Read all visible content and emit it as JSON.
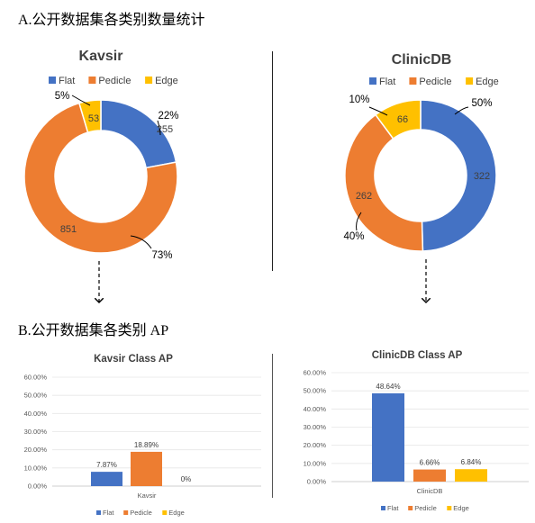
{
  "section_a_title": "A.公开数据集各类别数量统计",
  "section_b_title": "B.公开数据集各类别 AP",
  "colors": {
    "Flat": "#4472C4",
    "Pedicle": "#ED7D31",
    "Edge": "#FFC000"
  },
  "chart_data": [
    {
      "type": "pie",
      "title": "Kavsir",
      "legend": [
        "Flat",
        "Pedicle",
        "Edge"
      ],
      "legend_position": "top",
      "slices": [
        {
          "name": "Flat",
          "value": 255,
          "label": "255",
          "percent": "22%"
        },
        {
          "name": "Pedicle",
          "value": 851,
          "label": "851",
          "percent": "73%"
        },
        {
          "name": "Edge",
          "value": 53,
          "label": "53",
          "percent": "5%"
        }
      ]
    },
    {
      "type": "pie",
      "title": "ClinicDB",
      "legend": [
        "Flat",
        "Pedicle",
        "Edge"
      ],
      "legend_position": "top",
      "slices": [
        {
          "name": "Flat",
          "value": 322,
          "label": "322",
          "percent": "50%"
        },
        {
          "name": "Pedicle",
          "value": 262,
          "label": "262",
          "percent": "40%"
        },
        {
          "name": "Edge",
          "value": 66,
          "label": "66",
          "percent": "10%"
        }
      ]
    },
    {
      "type": "bar",
      "title": "Kavsir Class AP",
      "categories": [
        "Kavsir"
      ],
      "series": [
        {
          "name": "Flat",
          "values": [
            7.87
          ],
          "label": "7.87%"
        },
        {
          "name": "Pedicle",
          "values": [
            18.89
          ],
          "label": "18.89%"
        },
        {
          "name": "Edge",
          "values": [
            0
          ],
          "label": "0%"
        }
      ],
      "ylim": [
        0,
        60
      ],
      "yticks": [
        "0.00%",
        "10.00%",
        "20.00%",
        "30.00%",
        "40.00%",
        "50.00%",
        "60.00%"
      ],
      "legend_position": "bottom"
    },
    {
      "type": "bar",
      "title": "ClinicDB Class AP",
      "categories": [
        "ClinicDB"
      ],
      "series": [
        {
          "name": "Flat",
          "values": [
            48.64
          ],
          "label": "48.64%"
        },
        {
          "name": "Pedicle",
          "values": [
            6.66
          ],
          "label": "6.66%"
        },
        {
          "name": "Edge",
          "values": [
            6.84
          ],
          "label": "6.84%"
        }
      ],
      "ylim": [
        0,
        60
      ],
      "yticks": [
        "0.00%",
        "10.00%",
        "20.00%",
        "30.00%",
        "40.00%",
        "50.00%",
        "60.00%"
      ],
      "legend_position": "bottom"
    }
  ]
}
